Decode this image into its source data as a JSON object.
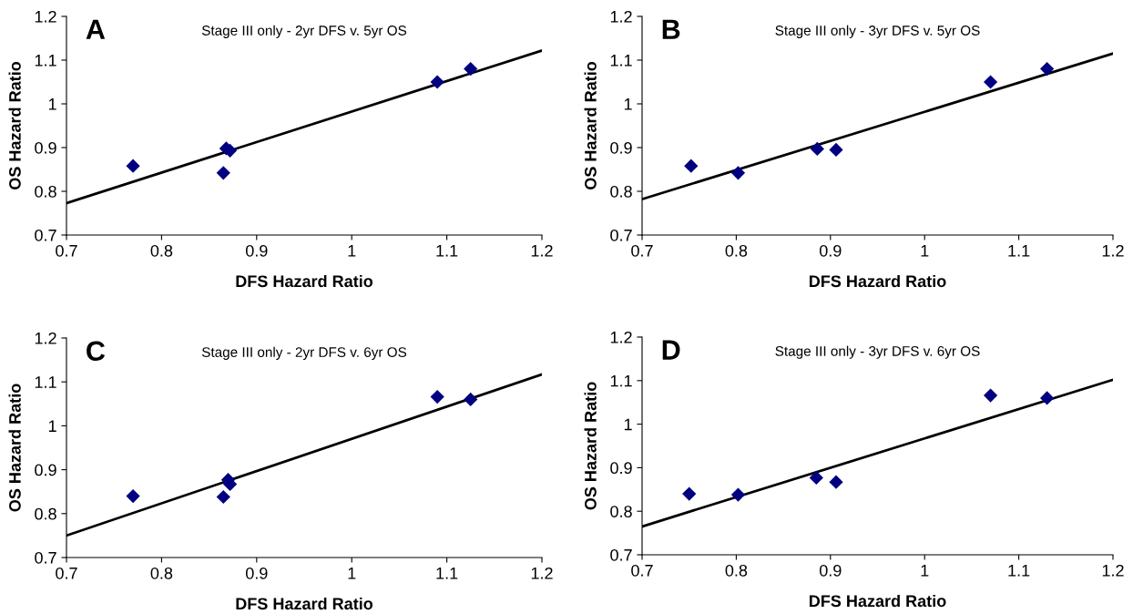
{
  "chart_data": [
    {
      "type": "scatter",
      "title": "Stage III only - 2yr DFS v. 5yr OS",
      "xlabel": "DFS Hazard Ratio",
      "ylabel": "OS Hazard Ratio",
      "annotations": [
        "A"
      ],
      "grid": false,
      "legend": false,
      "xlim": [
        0.7,
        1.2
      ],
      "xticks": [
        0.7,
        0.8,
        0.9,
        1,
        1.1,
        1.2
      ],
      "ylim": [
        0.7,
        1.2
      ],
      "yticks": [
        0.7,
        0.8,
        0.9,
        1,
        1.1,
        1.2
      ],
      "series": [
        {
          "color": "#000080",
          "marker": "diamond",
          "x": [
            0.77,
            0.865,
            0.868,
            0.872,
            1.09,
            1.125
          ],
          "values": [
            0.858,
            0.842,
            0.898,
            0.893,
            1.05,
            1.08
          ]
        },
        {
          "type": "line",
          "marker": "none",
          "color": "#000000",
          "x": [
            0.7,
            1.2
          ],
          "values": [
            0.773,
            1.122
          ]
        }
      ]
    },
    {
      "type": "scatter",
      "title": "Stage III only - 3yr DFS v. 5yr OS",
      "xlabel": "DFS Hazard Ratio",
      "ylabel": "OS Hazard Ratio",
      "annotations": [
        "B"
      ],
      "grid": false,
      "legend": false,
      "xlim": [
        0.7,
        1.2
      ],
      "xticks": [
        0.7,
        0.8,
        0.9,
        1,
        1.1,
        1.2
      ],
      "ylim": [
        0.7,
        1.2
      ],
      "yticks": [
        0.7,
        0.8,
        0.9,
        1,
        1.1,
        1.2
      ],
      "series": [
        {
          "color": "#000080",
          "marker": "diamond",
          "x": [
            0.752,
            0.802,
            0.886,
            0.906,
            1.07,
            1.13
          ],
          "values": [
            0.858,
            0.842,
            0.897,
            0.895,
            1.05,
            1.08
          ]
        },
        {
          "type": "line",
          "marker": "none",
          "color": "#000000",
          "x": [
            0.7,
            1.2
          ],
          "values": [
            0.782,
            1.115
          ]
        }
      ]
    },
    {
      "type": "scatter",
      "title": "Stage III only - 2yr DFS v. 6yr OS",
      "xlabel": "DFS Hazard Ratio",
      "ylabel": "OS Hazard Ratio",
      "annotations": [
        "C"
      ],
      "grid": false,
      "legend": false,
      "xlim": [
        0.7,
        1.2
      ],
      "xticks": [
        0.7,
        0.8,
        0.9,
        1,
        1.1,
        1.2
      ],
      "ylim": [
        0.7,
        1.2
      ],
      "yticks": [
        0.7,
        0.8,
        0.9,
        1,
        1.1,
        1.2
      ],
      "series": [
        {
          "color": "#000080",
          "marker": "diamond",
          "x": [
            0.77,
            0.865,
            0.87,
            0.872,
            1.09,
            1.125
          ],
          "values": [
            0.84,
            0.838,
            0.877,
            0.867,
            1.066,
            1.06
          ]
        },
        {
          "type": "line",
          "marker": "none",
          "color": "#000000",
          "x": [
            0.7,
            1.2
          ],
          "values": [
            0.75,
            1.117
          ]
        }
      ]
    },
    {
      "type": "scatter",
      "title": "Stage III only - 3yr DFS v. 6yr OS",
      "xlabel": "DFS Hazard Ratio",
      "ylabel": "OS Hazard Ratio",
      "annotations": [
        "D"
      ],
      "grid": false,
      "legend": false,
      "xlim": [
        0.7,
        1.2
      ],
      "xticks": [
        0.7,
        0.8,
        0.9,
        1,
        1.1,
        1.2
      ],
      "ylim": [
        0.7,
        1.2
      ],
      "yticks": [
        0.7,
        0.8,
        0.9,
        1,
        1.1,
        1.2
      ],
      "series": [
        {
          "color": "#000080",
          "marker": "diamond",
          "x": [
            0.75,
            0.802,
            0.885,
            0.906,
            1.07,
            1.13
          ],
          "values": [
            0.84,
            0.838,
            0.877,
            0.867,
            1.066,
            1.06
          ]
        },
        {
          "type": "line",
          "marker": "none",
          "color": "#000000",
          "x": [
            0.7,
            1.2
          ],
          "values": [
            0.765,
            1.102
          ]
        }
      ]
    }
  ]
}
